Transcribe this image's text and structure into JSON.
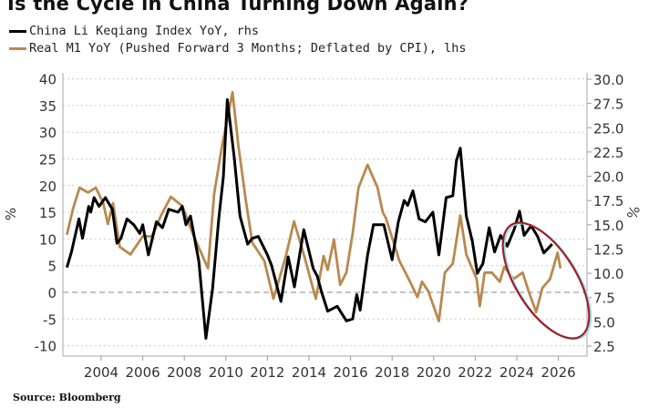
{
  "chart_data": {
    "type": "line",
    "title": "Is the Cycle in China Turning Down Again?",
    "source": "Source: Bloomberg",
    "ylabel_left": "%",
    "ylabel_right": "%",
    "ylim_left": [
      -10,
      40
    ],
    "ylim_right": [
      2.5,
      30.0
    ],
    "xlim": [
      2002.15,
      2027.35
    ],
    "grid": true,
    "legend_position": "top-left",
    "x_ticks": [
      "2004",
      "2006",
      "2008",
      "2010",
      "2012",
      "2014",
      "2016",
      "2018",
      "2020",
      "2022",
      "2024",
      "2026"
    ],
    "y_ticks_left": [
      "40",
      "35",
      "30",
      "25",
      "20",
      "15",
      "10",
      "5",
      "0",
      "-5",
      "-10"
    ],
    "y_ticks_right": [
      "30.0",
      "27.5",
      "25.0",
      "22.5",
      "20.0",
      "17.5",
      "15.0",
      "12.5",
      "10.0",
      "7.5",
      "5.0",
      "2.5"
    ],
    "annotation": "red ellipse highlighting 2024-2026",
    "series": [
      {
        "name": "China Li Keqiang Index YoY, rhs",
        "axis": "right",
        "color": "#000000",
        "points": [
          [
            2002.35,
            10.6
          ],
          [
            2002.57,
            12.2
          ],
          [
            2002.93,
            15.6
          ],
          [
            2003.1,
            13.6
          ],
          [
            2003.4,
            16.9
          ],
          [
            2003.5,
            16.3
          ],
          [
            2003.66,
            17.8
          ],
          [
            2003.9,
            16.9
          ],
          [
            2004.2,
            17.8
          ],
          [
            2004.54,
            16.6
          ],
          [
            2004.76,
            13.1
          ],
          [
            2004.95,
            13.6
          ],
          [
            2005.24,
            15.6
          ],
          [
            2005.57,
            15.0
          ],
          [
            2005.86,
            14.1
          ],
          [
            2006.0,
            15.0
          ],
          [
            2006.27,
            11.9
          ],
          [
            2006.66,
            15.3
          ],
          [
            2006.95,
            14.7
          ],
          [
            2007.25,
            16.6
          ],
          [
            2007.7,
            16.3
          ],
          [
            2007.9,
            16.9
          ],
          [
            2008.08,
            15.0
          ],
          [
            2008.3,
            15.9
          ],
          [
            2008.7,
            11.2
          ],
          [
            2009.04,
            3.3
          ],
          [
            2009.36,
            8.4
          ],
          [
            2009.66,
            15.6
          ],
          [
            2009.88,
            20.0
          ],
          [
            2010.07,
            27.9
          ],
          [
            2010.4,
            22.0
          ],
          [
            2010.68,
            15.9
          ],
          [
            2011.05,
            13.0
          ],
          [
            2011.27,
            13.6
          ],
          [
            2011.56,
            13.8
          ],
          [
            2012.0,
            11.9
          ],
          [
            2012.2,
            10.8
          ],
          [
            2012.65,
            7.1
          ],
          [
            2013.0,
            11.7
          ],
          [
            2013.3,
            8.6
          ],
          [
            2013.75,
            14.5
          ],
          [
            2014.2,
            10.5
          ],
          [
            2014.4,
            9.7
          ],
          [
            2014.6,
            8.1
          ],
          [
            2014.9,
            6.1
          ],
          [
            2015.36,
            6.6
          ],
          [
            2015.8,
            5.1
          ],
          [
            2016.1,
            5.3
          ],
          [
            2016.3,
            7.8
          ],
          [
            2016.46,
            6.2
          ],
          [
            2016.82,
            11.9
          ],
          [
            2017.1,
            15.0
          ],
          [
            2017.6,
            15.0
          ],
          [
            2018.0,
            11.4
          ],
          [
            2018.3,
            15.3
          ],
          [
            2018.58,
            17.5
          ],
          [
            2018.75,
            17.0
          ],
          [
            2019.0,
            18.5
          ],
          [
            2019.3,
            15.6
          ],
          [
            2019.6,
            15.3
          ],
          [
            2019.96,
            16.3
          ],
          [
            2020.25,
            11.9
          ],
          [
            2020.6,
            17.8
          ],
          [
            2020.92,
            18.0
          ],
          [
            2021.09,
            21.6
          ],
          [
            2021.28,
            22.9
          ],
          [
            2021.57,
            15.9
          ],
          [
            2021.86,
            13.3
          ],
          [
            2022.1,
            10.0
          ],
          [
            2022.37,
            11.0
          ],
          [
            2022.67,
            14.7
          ],
          [
            2022.93,
            12.2
          ],
          [
            2023.22,
            13.9
          ],
          [
            2023.54,
            12.8
          ],
          [
            2023.87,
            14.5
          ],
          [
            2024.13,
            16.4
          ],
          [
            2024.35,
            13.9
          ],
          [
            2024.69,
            14.9
          ],
          [
            2025.0,
            13.8
          ],
          [
            2025.3,
            12.1
          ],
          [
            2025.7,
            13.0
          ]
        ]
      },
      {
        "name": "Real M1 YoY (Pushed Forward 3 Months; Deflated by CPI), lhs",
        "axis": "left",
        "color": "#b8894f",
        "points": [
          [
            2002.35,
            10.8
          ],
          [
            2002.64,
            15.6
          ],
          [
            2002.96,
            19.6
          ],
          [
            2003.37,
            18.7
          ],
          [
            2003.74,
            19.6
          ],
          [
            2004.1,
            16.7
          ],
          [
            2004.32,
            12.8
          ],
          [
            2004.57,
            16.7
          ],
          [
            2004.9,
            8.5
          ],
          [
            2005.41,
            7.1
          ],
          [
            2006.0,
            10.5
          ],
          [
            2006.44,
            10.5
          ],
          [
            2006.88,
            14.4
          ],
          [
            2007.35,
            17.9
          ],
          [
            2007.9,
            16.2
          ],
          [
            2008.49,
            10.2
          ],
          [
            2009.14,
            4.5
          ],
          [
            2009.44,
            18.5
          ],
          [
            2009.8,
            27.0
          ],
          [
            2010.32,
            37.5
          ],
          [
            2010.6,
            27.5
          ],
          [
            2010.97,
            17.0
          ],
          [
            2011.27,
            9.3
          ],
          [
            2011.85,
            5.9
          ],
          [
            2012.29,
            -1.2
          ],
          [
            2012.87,
            6.5
          ],
          [
            2013.28,
            13.3
          ],
          [
            2013.75,
            7.1
          ],
          [
            2014.33,
            -1.2
          ],
          [
            2014.7,
            6.8
          ],
          [
            2014.9,
            4.2
          ],
          [
            2015.2,
            9.9
          ],
          [
            2015.5,
            1.4
          ],
          [
            2015.8,
            3.7
          ],
          [
            2016.1,
            11.0
          ],
          [
            2016.38,
            19.6
          ],
          [
            2016.82,
            23.9
          ],
          [
            2017.3,
            19.6
          ],
          [
            2017.55,
            15.0
          ],
          [
            2017.7,
            13.9
          ],
          [
            2018.35,
            5.9
          ],
          [
            2018.86,
            2.0
          ],
          [
            2019.22,
            -0.9
          ],
          [
            2019.44,
            2.0
          ],
          [
            2019.74,
            0.2
          ],
          [
            2020.25,
            -5.4
          ],
          [
            2020.54,
            3.7
          ],
          [
            2020.92,
            5.4
          ],
          [
            2021.28,
            14.4
          ],
          [
            2021.57,
            7.1
          ],
          [
            2022.07,
            2.5
          ],
          [
            2022.22,
            -2.6
          ],
          [
            2022.45,
            3.7
          ],
          [
            2022.8,
            3.7
          ],
          [
            2023.18,
            2.0
          ],
          [
            2023.4,
            4.8
          ],
          [
            2023.84,
            2.5
          ],
          [
            2024.28,
            3.7
          ],
          [
            2024.57,
            0.2
          ],
          [
            2024.93,
            -3.7
          ],
          [
            2025.23,
            0.8
          ],
          [
            2025.6,
            2.5
          ],
          [
            2025.96,
            7.4
          ],
          [
            2026.1,
            4.5
          ]
        ]
      }
    ]
  }
}
